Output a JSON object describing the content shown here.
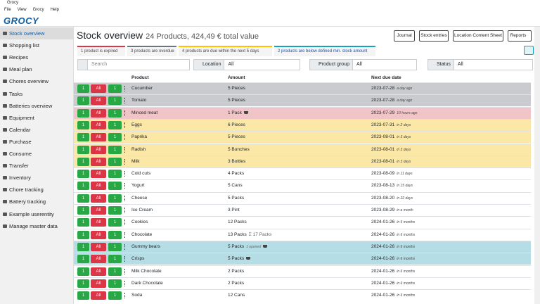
{
  "window": {
    "title": "Grocy",
    "menu": [
      "File",
      "View",
      "Grocy",
      "Help"
    ]
  },
  "app": {
    "logo": "GROCY"
  },
  "sidebar": {
    "items": [
      "Stock overview",
      "Shopping list",
      "Recipes",
      "Meal plan",
      "Chores overview",
      "Tasks",
      "Batteries overview",
      "Equipment",
      "Calendar",
      "Purchase",
      "Consume",
      "Transfer",
      "Inventory",
      "Chore tracking",
      "Battery tracking",
      "Example userentity",
      "Manage master data"
    ]
  },
  "header": {
    "title": "Stock overview",
    "subtitle": "24 Products, 424,49 € total value",
    "buttons": [
      "Journal",
      "Stock entries",
      "Location Content Sheet",
      "Reports"
    ]
  },
  "badges": [
    {
      "text": "1 product is expired",
      "color": "#dc3545"
    },
    {
      "text": "3 products are overdue",
      "color": "#6c757d"
    },
    {
      "text": "4 products are due within the next 5 days",
      "color": "#ffc107"
    },
    {
      "text": "2 products are below defined min. stock amount",
      "color": "#17a2b8"
    }
  ],
  "filters": {
    "search_placeholder": "Search",
    "groups": [
      {
        "label": "Location",
        "value": "All"
      },
      {
        "label": "Product group",
        "value": "All"
      },
      {
        "label": "Status",
        "value": "All"
      }
    ]
  },
  "table": {
    "columns": [
      "Product",
      "Amount",
      "Next due date"
    ],
    "action_labels": [
      "1",
      "All",
      "1"
    ],
    "rows": [
      {
        "product": "Cucumber",
        "amount": "5 Pieces",
        "due": "2023-07-28",
        "relative": "a day ago",
        "color": "#c9cbce"
      },
      {
        "product": "Tomato",
        "amount": "5 Pieces",
        "due": "2023-07-28",
        "relative": "a day ago",
        "color": "#c9cbce"
      },
      {
        "product": "Minced meat",
        "amount": "1 Pack",
        "cart": true,
        "due": "2023-07-29",
        "relative": "10 hours ago",
        "color": "#f1c4c8"
      },
      {
        "product": "Eggs",
        "amount": "6 Pieces",
        "due": "2023-07-31",
        "relative": "in 2 days",
        "color": "#fce8a6"
      },
      {
        "product": "Paprika",
        "amount": "5 Pieces",
        "due": "2023-08-01",
        "relative": "in 3 days",
        "color": "#fce8a6"
      },
      {
        "product": "Radish",
        "amount": "5 Bunches",
        "due": "2023-08-01",
        "relative": "in 3 days",
        "color": "#fce8a6"
      },
      {
        "product": "Milk",
        "amount": "3 Bottles",
        "due": "2023-08-01",
        "relative": "in 3 days",
        "color": "#fce8a6"
      },
      {
        "product": "Cold cuts",
        "amount": "4 Packs",
        "due": "2023-08-09",
        "relative": "in 11 days",
        "color": "#ffffff"
      },
      {
        "product": "Yogurt",
        "amount": "5 Cans",
        "due": "2023-08-13",
        "relative": "in 15 days",
        "color": "#ffffff"
      },
      {
        "product": "Cheese",
        "amount": "5 Packs",
        "due": "2023-08-20",
        "relative": "in 22 days",
        "color": "#ffffff"
      },
      {
        "product": "Ice Cream",
        "amount": "3 Pint",
        "due": "2023-08-29",
        "relative": "in a month",
        "color": "#ffffff"
      },
      {
        "product": "Cookies",
        "amount": "12 Packs",
        "due": "2024-01-26",
        "relative": "in 6 months",
        "color": "#ffffff"
      },
      {
        "product": "Chocolate",
        "amount": "13 Packs",
        "note": "Σ 17 Packs",
        "due": "2024-01-26",
        "relative": "in 6 months",
        "color": "#ffffff"
      },
      {
        "product": "Gummy bears",
        "amount": "5 Packs",
        "note": "1 opened",
        "cart": true,
        "due": "2024-01-26",
        "relative": "in 6 months",
        "color": "#b5dde6"
      },
      {
        "product": "Crisps",
        "amount": "5 Packs",
        "cart": true,
        "due": "2024-01-26",
        "relative": "in 6 months",
        "color": "#b5dde6"
      },
      {
        "product": "Milk Chocolate",
        "amount": "2 Packs",
        "due": "2024-01-26",
        "relative": "in 6 months",
        "color": "#ffffff"
      },
      {
        "product": "Dark Chocolate",
        "amount": "2 Packs",
        "due": "2024-01-26",
        "relative": "in 6 months",
        "color": "#ffffff"
      },
      {
        "product": "Soda",
        "amount": "12 Cans",
        "due": "2024-01-26",
        "relative": "in 6 months",
        "color": "#ffffff"
      }
    ]
  }
}
